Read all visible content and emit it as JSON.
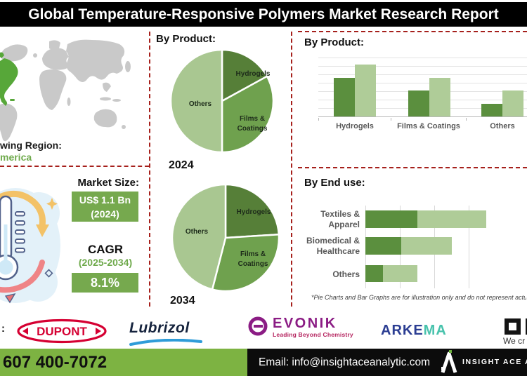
{
  "title": "Global Temperature-Responsive Polymers Market Research Report",
  "colors": {
    "green_dark": "#567f38",
    "green_mid": "#6fa14e",
    "green_light": "#a9c791",
    "bar_dark": "#5b8f3e",
    "bar_light": "#afcc98",
    "box_green": "#76a94e",
    "accent_green_text": "#6faa4c",
    "dash_red": "#a6201c",
    "footer_green": "#7db342",
    "map_green": "#57a739",
    "map_gray": "#c9c9c9",
    "footer_black": "#0c0c0c"
  },
  "region": {
    "line1": "wing Region:",
    "line2": "merica"
  },
  "market": {
    "size_label": "Market Size:",
    "size_value": "US$ 1.1 Bn",
    "size_year": "(2024)",
    "cagr_label": "CAGR",
    "cagr_period": "(2025-2034)",
    "cagr_value": "8.1%"
  },
  "sections": {
    "pie_title": "By Product:"
  },
  "chart_data": [
    {
      "type": "pie",
      "year_label": "2024",
      "title": "By Product:",
      "slices": [
        {
          "label": "Hydrogels",
          "value": 17
        },
        {
          "label": "Films & Coatings",
          "value": 33
        },
        {
          "label": "Others",
          "value": 50
        }
      ]
    },
    {
      "type": "pie",
      "year_label": "2034",
      "title": "By Product:",
      "slices": [
        {
          "label": "Hydrogels",
          "value": 24
        },
        {
          "label": "Films & Coatings",
          "value": 30
        },
        {
          "label": "Others",
          "value": 46
        }
      ]
    },
    {
      "type": "bar",
      "title": "By Product:",
      "categories": [
        "Hydrogels",
        "Films & Coatings",
        "Others"
      ],
      "ylim": [
        0,
        100
      ],
      "grid": true,
      "legend": "none",
      "series": [
        {
          "name": "dark-green",
          "values": [
            65,
            44,
            21
          ]
        },
        {
          "name": "light-green",
          "values": [
            88,
            66,
            44
          ]
        }
      ]
    },
    {
      "type": "stacked-bar-horizontal",
      "title": "By End use:",
      "categories": [
        "Textiles & Apparel",
        "Biomedical & Healthcare",
        "Others"
      ],
      "xlim": [
        0,
        100
      ],
      "grid": true,
      "legend": "none",
      "series": [
        {
          "name": "dark-green",
          "values": [
            38,
            26,
            13
          ]
        },
        {
          "name": "light-green",
          "values": [
            50,
            37,
            25
          ]
        }
      ]
    }
  ],
  "note": "*Pie Charts and Bar Graphs are for illustration only and do not represent actu",
  "logos": {
    "key_players_prefix": ":",
    "dupont": "DUPONT",
    "lubrizol": "Lubrizol",
    "evonik": "EVONIK",
    "evonik_tagline": "Leading Beyond Chemistry",
    "arkema_part1": "ARKE",
    "arkema_part2": "MA",
    "basf_partial": "We cr"
  },
  "footer": {
    "phone": "607 400-7072",
    "email": "Email: info@insightaceanalytic.com",
    "brand": "INSIGHT ACE A"
  }
}
